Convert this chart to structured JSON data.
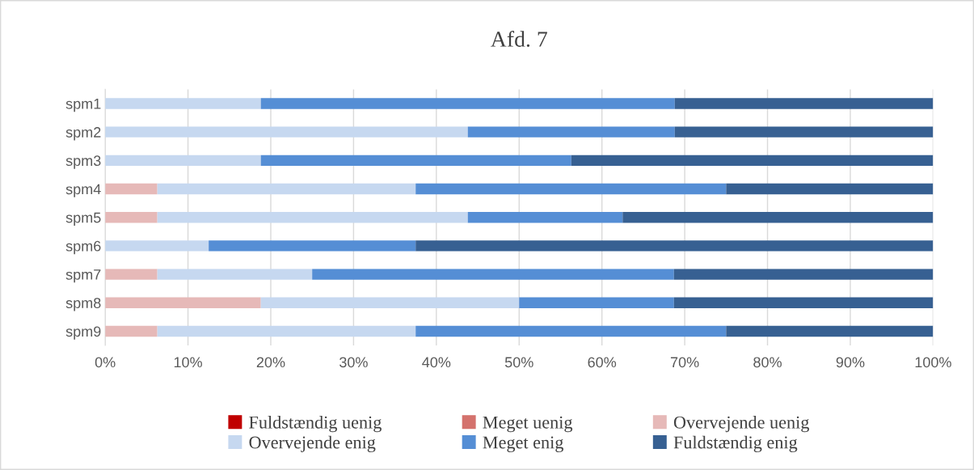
{
  "chart_data": {
    "type": "bar",
    "title": "Afd. 7",
    "orientation": "horizontal",
    "stacked": true,
    "categories": [
      "spm1",
      "spm2",
      "spm3",
      "spm4",
      "spm5",
      "spm6",
      "spm7",
      "spm8",
      "spm9"
    ],
    "series": [
      {
        "name": "Fuldstændig uenig",
        "color": "#c00000",
        "values": [
          0,
          0,
          0,
          0,
          0,
          0,
          0,
          0,
          0
        ]
      },
      {
        "name": "Meget uenig",
        "color": "#d4726d",
        "values": [
          0,
          0,
          0,
          0,
          0,
          0,
          0,
          0,
          0
        ]
      },
      {
        "name": "Overvejende uenig",
        "color": "#e6b9b8",
        "values": [
          0,
          0,
          0,
          6.3,
          6.3,
          0,
          6.3,
          18.8,
          6.3
        ]
      },
      {
        "name": "Overvejende enig",
        "color": "#c6d8f0",
        "values": [
          18.8,
          43.8,
          18.8,
          31.2,
          37.5,
          12.5,
          18.7,
          31.2,
          31.2
        ]
      },
      {
        "name": "Meget enig",
        "color": "#558ed5",
        "values": [
          50,
          25,
          37.5,
          37.5,
          18.7,
          25,
          43.7,
          18.7,
          37.5
        ]
      },
      {
        "name": "Fuldstændig enig",
        "color": "#376092",
        "values": [
          31.2,
          31.2,
          43.7,
          25,
          37.5,
          62.5,
          31.3,
          31.3,
          25
        ]
      }
    ],
    "xlim": [
      0,
      100
    ],
    "xticks": [
      {
        "value": 0,
        "label": "0%"
      },
      {
        "value": 10,
        "label": "10%"
      },
      {
        "value": 20,
        "label": "20%"
      },
      {
        "value": 30,
        "label": "30%"
      },
      {
        "value": 40,
        "label": "40%"
      },
      {
        "value": 50,
        "label": "50%"
      },
      {
        "value": 60,
        "label": "60%"
      },
      {
        "value": 70,
        "label": "70%"
      },
      {
        "value": 80,
        "label": "80%"
      },
      {
        "value": 90,
        "label": "90%"
      },
      {
        "value": 100,
        "label": "100%"
      }
    ],
    "grid": "x",
    "legend": "bottom"
  }
}
